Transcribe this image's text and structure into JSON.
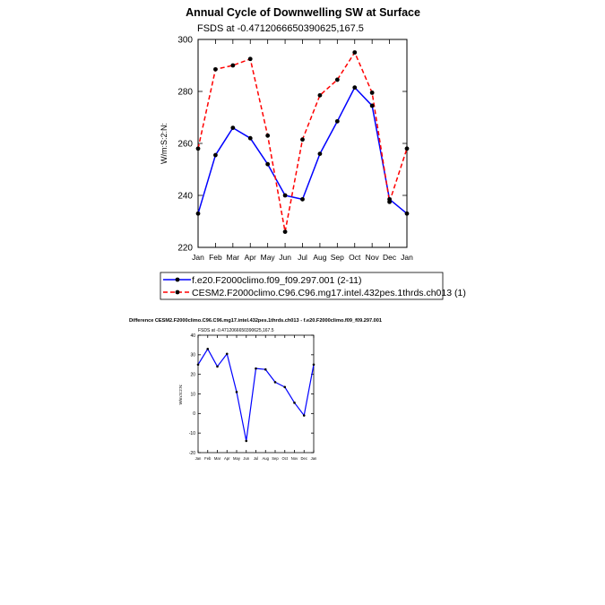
{
  "chart_data": [
    {
      "type": "line",
      "title": "Annual Cycle of Downwelling SW at Surface",
      "subtitle": "FSDS at -0.4712066650390625,167.5",
      "ylabel": "W/m:S:2:N:",
      "xlabel": "",
      "ylim": [
        220,
        300
      ],
      "yticks": [
        220,
        240,
        260,
        280,
        300
      ],
      "categories": [
        "Jan",
        "Feb",
        "Mar",
        "Apr",
        "May",
        "Jun",
        "Jul",
        "Aug",
        "Sep",
        "Oct",
        "Nov",
        "Dec",
        "Jan"
      ],
      "legend_position": "bottom",
      "series": [
        {
          "name": "f.e20.F2000climo.f09_f09.297.001 (2-11)",
          "color": "#0000ff",
          "dash": "solid",
          "values": [
            233,
            255.5,
            266,
            262,
            252,
            240,
            238.5,
            256,
            268.5,
            281.5,
            274.5,
            238.5,
            233
          ]
        },
        {
          "name": "CESM2.F2000climo.C96.C96.mg17.intel.432pes.1thrds.ch013 (1)",
          "color": "#ff0000",
          "dash": "dashed",
          "values": [
            258,
            288.5,
            290,
            292.5,
            263,
            226,
            261.5,
            278.5,
            284.5,
            295,
            279.5,
            237.5,
            258
          ]
        }
      ]
    },
    {
      "type": "line",
      "title": "Difference CESM2.F2000climo.C96.C96.mg17.intel.432pes.1thrds.ch013 - f.e20.F2000climo.f09_f09.297.001",
      "subtitle": "FSDS at -0.4712066650390625,167.5",
      "ylabel": "W/m:S:2:N:",
      "xlabel": "",
      "ylim": [
        -20,
        40
      ],
      "yticks": [
        -20,
        -10,
        0,
        10,
        20,
        30,
        40
      ],
      "categories": [
        "Jan",
        "Feb",
        "Mar",
        "Apr",
        "May",
        "Jun",
        "Jul",
        "Aug",
        "Sep",
        "Oct",
        "Nov",
        "Dec",
        "Jan"
      ],
      "series": [
        {
          "color": "#0000ff",
          "dash": "solid",
          "values": [
            25,
            33,
            24,
            30.5,
            11,
            -14,
            23,
            22.5,
            16,
            13.5,
            5.5,
            -1,
            25
          ]
        }
      ]
    }
  ]
}
